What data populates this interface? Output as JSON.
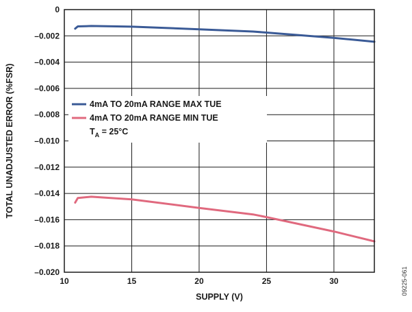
{
  "chart_data": {
    "type": "line",
    "xlabel": "SUPPLY (V)",
    "ylabel": "TOTAL UNADJUSTED ERROR (%FSR)",
    "xlim": [
      10,
      33
    ],
    "ylim": [
      -0.02,
      0
    ],
    "x_ticks": [
      10,
      15,
      20,
      25,
      30
    ],
    "x_tick_labels": [
      "10",
      "15",
      "20",
      "25",
      "30"
    ],
    "y_ticks": [
      0,
      -0.002,
      -0.004,
      -0.006,
      -0.008,
      -0.01,
      -0.012,
      -0.014,
      -0.016,
      -0.018,
      -0.02
    ],
    "y_tick_labels": [
      "0",
      "–0.002",
      "–0.004",
      "–0.006",
      "–0.008",
      "–0.010",
      "–0.012",
      "–0.014",
      "–0.016",
      "–0.018",
      "–0.020"
    ],
    "grid": true,
    "legend_position": "middle-left",
    "series": [
      {
        "name": "4mA TO 20mA RANGE MAX TUE",
        "color": "#3a5a96",
        "x": [
          10.8,
          11.0,
          12.0,
          15.0,
          20.0,
          24.0,
          25.0,
          30.0,
          33.0
        ],
        "y": [
          -0.00145,
          -0.00128,
          -0.00125,
          -0.0013,
          -0.0015,
          -0.00167,
          -0.00175,
          -0.00215,
          -0.00245
        ]
      },
      {
        "name": "4mA TO 20mA RANGE MIN TUE",
        "color": "#e0697e",
        "x": [
          10.8,
          11.0,
          12.0,
          15.0,
          20.0,
          24.0,
          25.0,
          30.0,
          33.0
        ],
        "y": [
          -0.0147,
          -0.01435,
          -0.01425,
          -0.01445,
          -0.0151,
          -0.0156,
          -0.0158,
          -0.0169,
          -0.01765
        ]
      }
    ],
    "annotation": {
      "main": "T",
      "subscript": "A",
      "rest": " = 25°C"
    }
  },
  "figure_id": "09225-061"
}
